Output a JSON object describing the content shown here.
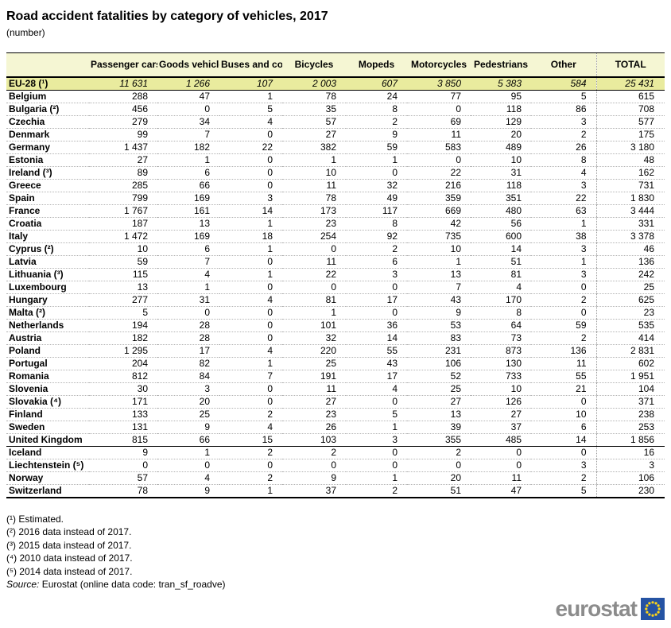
{
  "title": "Road accident fatalities by category of vehicles, 2017",
  "subtitle": "(number)",
  "table": {
    "columns": [
      "",
      "Passenger cars",
      "Goods vehicles",
      "Buses and coaches",
      "Bicycles",
      "Mopeds",
      "Motorcycles",
      "Pedestrians",
      "Other",
      "TOTAL"
    ],
    "eu_row": {
      "label": "EU-28 (¹)",
      "values": [
        "11 631",
        "1 266",
        "107",
        "2 003",
        "607",
        "3 850",
        "5 383",
        "584",
        "25 431"
      ]
    },
    "rows": [
      {
        "label": "Belgium",
        "values": [
          "288",
          "47",
          "1",
          "78",
          "24",
          "77",
          "95",
          "5",
          "615"
        ]
      },
      {
        "label": "Bulgaria (²)",
        "values": [
          "456",
          "0",
          "5",
          "35",
          "8",
          "0",
          "118",
          "86",
          "708"
        ]
      },
      {
        "label": "Czechia",
        "values": [
          "279",
          "34",
          "4",
          "57",
          "2",
          "69",
          "129",
          "3",
          "577"
        ]
      },
      {
        "label": "Denmark",
        "values": [
          "99",
          "7",
          "0",
          "27",
          "9",
          "11",
          "20",
          "2",
          "175"
        ]
      },
      {
        "label": "Germany",
        "values": [
          "1 437",
          "182",
          "22",
          "382",
          "59",
          "583",
          "489",
          "26",
          "3 180"
        ]
      },
      {
        "label": "Estonia",
        "values": [
          "27",
          "1",
          "0",
          "1",
          "1",
          "0",
          "10",
          "8",
          "48"
        ]
      },
      {
        "label": "Ireland (³)",
        "values": [
          "89",
          "6",
          "0",
          "10",
          "0",
          "22",
          "31",
          "4",
          "162"
        ]
      },
      {
        "label": "Greece",
        "values": [
          "285",
          "66",
          "0",
          "11",
          "32",
          "216",
          "118",
          "3",
          "731"
        ]
      },
      {
        "label": "Spain",
        "values": [
          "799",
          "169",
          "3",
          "78",
          "49",
          "359",
          "351",
          "22",
          "1 830"
        ]
      },
      {
        "label": "France",
        "values": [
          "1 767",
          "161",
          "14",
          "173",
          "117",
          "669",
          "480",
          "63",
          "3 444"
        ]
      },
      {
        "label": "Croatia",
        "values": [
          "187",
          "13",
          "1",
          "23",
          "8",
          "42",
          "56",
          "1",
          "331"
        ]
      },
      {
        "label": "Italy",
        "values": [
          "1 472",
          "169",
          "18",
          "254",
          "92",
          "735",
          "600",
          "38",
          "3 378"
        ]
      },
      {
        "label": "Cyprus (²)",
        "values": [
          "10",
          "6",
          "1",
          "0",
          "2",
          "10",
          "14",
          "3",
          "46"
        ]
      },
      {
        "label": "Latvia",
        "values": [
          "59",
          "7",
          "0",
          "11",
          "6",
          "1",
          "51",
          "1",
          "136"
        ]
      },
      {
        "label": "Lithuania (³)",
        "values": [
          "115",
          "4",
          "1",
          "22",
          "3",
          "13",
          "81",
          "3",
          "242"
        ]
      },
      {
        "label": "Luxembourg",
        "values": [
          "13",
          "1",
          "0",
          "0",
          "0",
          "7",
          "4",
          "0",
          "25"
        ]
      },
      {
        "label": "Hungary",
        "values": [
          "277",
          "31",
          "4",
          "81",
          "17",
          "43",
          "170",
          "2",
          "625"
        ]
      },
      {
        "label": "Malta (²)",
        "values": [
          "5",
          "0",
          "0",
          "1",
          "0",
          "9",
          "8",
          "0",
          "23"
        ]
      },
      {
        "label": "Netherlands",
        "values": [
          "194",
          "28",
          "0",
          "101",
          "36",
          "53",
          "64",
          "59",
          "535"
        ]
      },
      {
        "label": "Austria",
        "values": [
          "182",
          "28",
          "0",
          "32",
          "14",
          "83",
          "73",
          "2",
          "414"
        ]
      },
      {
        "label": "Poland",
        "values": [
          "1 295",
          "17",
          "4",
          "220",
          "55",
          "231",
          "873",
          "136",
          "2 831"
        ]
      },
      {
        "label": "Portugal",
        "values": [
          "204",
          "82",
          "1",
          "25",
          "43",
          "106",
          "130",
          "11",
          "602"
        ]
      },
      {
        "label": "Romania",
        "values": [
          "812",
          "84",
          "7",
          "191",
          "17",
          "52",
          "733",
          "55",
          "1 951"
        ]
      },
      {
        "label": "Slovenia",
        "values": [
          "30",
          "3",
          "0",
          "11",
          "4",
          "25",
          "10",
          "21",
          "104"
        ]
      },
      {
        "label": "Slovakia (⁴)",
        "values": [
          "171",
          "20",
          "0",
          "27",
          "0",
          "27",
          "126",
          "0",
          "371"
        ]
      },
      {
        "label": "Finland",
        "values": [
          "133",
          "25",
          "2",
          "23",
          "5",
          "13",
          "27",
          "10",
          "238"
        ]
      },
      {
        "label": "Sweden",
        "values": [
          "131",
          "9",
          "4",
          "26",
          "1",
          "39",
          "37",
          "6",
          "253"
        ]
      },
      {
        "label": "United Kingdom",
        "values": [
          "815",
          "66",
          "15",
          "103",
          "3",
          "355",
          "485",
          "14",
          "1 856"
        ],
        "section_end": true
      },
      {
        "label": "Iceland",
        "values": [
          "9",
          "1",
          "2",
          "2",
          "0",
          "2",
          "0",
          "0",
          "16"
        ]
      },
      {
        "label": "Liechtenstein (⁵)",
        "values": [
          "0",
          "0",
          "0",
          "0",
          "0",
          "0",
          "0",
          "3",
          "3"
        ]
      },
      {
        "label": "Norway",
        "values": [
          "57",
          "4",
          "2",
          "9",
          "1",
          "20",
          "11",
          "2",
          "106"
        ]
      },
      {
        "label": "Switzerland",
        "values": [
          "78",
          "9",
          "1",
          "37",
          "2",
          "51",
          "47",
          "5",
          "230"
        ]
      }
    ]
  },
  "chart_data": {
    "type": "table",
    "title": "Road accident fatalities by category of vehicles, 2017",
    "unit": "number",
    "categories": [
      "Passenger cars",
      "Goods vehicles",
      "Buses and coaches",
      "Bicycles",
      "Mopeds",
      "Motorcycles",
      "Pedestrians",
      "Other",
      "TOTAL"
    ],
    "series": [
      {
        "name": "EU-28 (estimated)",
        "values": [
          11631,
          1266,
          107,
          2003,
          607,
          3850,
          5383,
          584,
          25431
        ]
      },
      {
        "name": "Belgium",
        "values": [
          288,
          47,
          1,
          78,
          24,
          77,
          95,
          5,
          615
        ]
      },
      {
        "name": "Bulgaria",
        "values": [
          456,
          0,
          5,
          35,
          8,
          0,
          118,
          86,
          708
        ]
      },
      {
        "name": "Czechia",
        "values": [
          279,
          34,
          4,
          57,
          2,
          69,
          129,
          3,
          577
        ]
      },
      {
        "name": "Denmark",
        "values": [
          99,
          7,
          0,
          27,
          9,
          11,
          20,
          2,
          175
        ]
      },
      {
        "name": "Germany",
        "values": [
          1437,
          182,
          22,
          382,
          59,
          583,
          489,
          26,
          3180
        ]
      },
      {
        "name": "Estonia",
        "values": [
          27,
          1,
          0,
          1,
          1,
          0,
          10,
          8,
          48
        ]
      },
      {
        "name": "Ireland",
        "values": [
          89,
          6,
          0,
          10,
          0,
          22,
          31,
          4,
          162
        ]
      },
      {
        "name": "Greece",
        "values": [
          285,
          66,
          0,
          11,
          32,
          216,
          118,
          3,
          731
        ]
      },
      {
        "name": "Spain",
        "values": [
          799,
          169,
          3,
          78,
          49,
          359,
          351,
          22,
          1830
        ]
      },
      {
        "name": "France",
        "values": [
          1767,
          161,
          14,
          173,
          117,
          669,
          480,
          63,
          3444
        ]
      },
      {
        "name": "Croatia",
        "values": [
          187,
          13,
          1,
          23,
          8,
          42,
          56,
          1,
          331
        ]
      },
      {
        "name": "Italy",
        "values": [
          1472,
          169,
          18,
          254,
          92,
          735,
          600,
          38,
          3378
        ]
      },
      {
        "name": "Cyprus",
        "values": [
          10,
          6,
          1,
          0,
          2,
          10,
          14,
          3,
          46
        ]
      },
      {
        "name": "Latvia",
        "values": [
          59,
          7,
          0,
          11,
          6,
          1,
          51,
          1,
          136
        ]
      },
      {
        "name": "Lithuania",
        "values": [
          115,
          4,
          1,
          22,
          3,
          13,
          81,
          3,
          242
        ]
      },
      {
        "name": "Luxembourg",
        "values": [
          13,
          1,
          0,
          0,
          0,
          7,
          4,
          0,
          25
        ]
      },
      {
        "name": "Hungary",
        "values": [
          277,
          31,
          4,
          81,
          17,
          43,
          170,
          2,
          625
        ]
      },
      {
        "name": "Malta",
        "values": [
          5,
          0,
          0,
          1,
          0,
          9,
          8,
          0,
          23
        ]
      },
      {
        "name": "Netherlands",
        "values": [
          194,
          28,
          0,
          101,
          36,
          53,
          64,
          59,
          535
        ]
      },
      {
        "name": "Austria",
        "values": [
          182,
          28,
          0,
          32,
          14,
          83,
          73,
          2,
          414
        ]
      },
      {
        "name": "Poland",
        "values": [
          1295,
          17,
          4,
          220,
          55,
          231,
          873,
          136,
          2831
        ]
      },
      {
        "name": "Portugal",
        "values": [
          204,
          82,
          1,
          25,
          43,
          106,
          130,
          11,
          602
        ]
      },
      {
        "name": "Romania",
        "values": [
          812,
          84,
          7,
          191,
          17,
          52,
          733,
          55,
          1951
        ]
      },
      {
        "name": "Slovenia",
        "values": [
          30,
          3,
          0,
          11,
          4,
          25,
          10,
          21,
          104
        ]
      },
      {
        "name": "Slovakia",
        "values": [
          171,
          20,
          0,
          27,
          0,
          27,
          126,
          0,
          371
        ]
      },
      {
        "name": "Finland",
        "values": [
          133,
          25,
          2,
          23,
          5,
          13,
          27,
          10,
          238
        ]
      },
      {
        "name": "Sweden",
        "values": [
          131,
          9,
          4,
          26,
          1,
          39,
          37,
          6,
          253
        ]
      },
      {
        "name": "United Kingdom",
        "values": [
          815,
          66,
          15,
          103,
          3,
          355,
          485,
          14,
          1856
        ]
      },
      {
        "name": "Iceland",
        "values": [
          9,
          1,
          2,
          2,
          0,
          2,
          0,
          0,
          16
        ]
      },
      {
        "name": "Liechtenstein",
        "values": [
          0,
          0,
          0,
          0,
          0,
          0,
          0,
          3,
          3
        ]
      },
      {
        "name": "Norway",
        "values": [
          57,
          4,
          2,
          9,
          1,
          20,
          11,
          2,
          106
        ]
      },
      {
        "name": "Switzerland",
        "values": [
          78,
          9,
          1,
          37,
          2,
          51,
          47,
          5,
          230
        ]
      }
    ]
  },
  "footnotes": [
    "(¹) Estimated.",
    "(²) 2016 data instead of 2017.",
    "(³) 2015 data instead of 2017.",
    "(⁴) 2010 data instead of 2017.",
    "(⁵) 2014 data instead of 2017."
  ],
  "source": {
    "label": "Source:",
    "text": " Eurostat (online data code: tran_sf_roadve)"
  },
  "logo": {
    "text": "eurostat"
  },
  "colors": {
    "header_bg": "#f5f6d3",
    "eu_row_bg": "#e9eb9e",
    "logo_blue": "#2553a3",
    "logo_star": "#ffd617",
    "logo_gray": "#8c8c8c"
  }
}
